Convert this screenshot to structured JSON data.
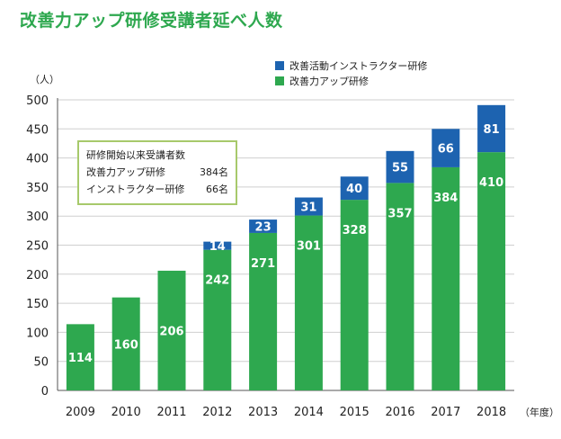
{
  "chart_data": {
    "type": "bar",
    "stacked": true,
    "title": "改善力アップ研修受講者延べ人数",
    "ylabel": "（人）",
    "xlabel": "（年度）",
    "ylim": [
      0,
      500
    ],
    "yticks": [
      "0",
      "50",
      "100",
      "150",
      "200",
      "250",
      "300",
      "350",
      "400",
      "450",
      "500"
    ],
    "categories": [
      "2009",
      "2010",
      "2011",
      "2012",
      "2013",
      "2014",
      "2015",
      "2016",
      "2017",
      "2018"
    ],
    "series": [
      {
        "name": "改善力アップ研修",
        "color": "#2ea84f",
        "values": [
          114,
          160,
          206,
          242,
          271,
          301,
          328,
          357,
          384,
          410
        ]
      },
      {
        "name": "改善活動インストラクター研修",
        "color": "#1d63b0",
        "values": [
          0,
          0,
          0,
          14,
          23,
          31,
          40,
          55,
          66,
          81
        ]
      }
    ],
    "legend_position": "top-right",
    "grid": true
  },
  "summary": {
    "heading": "研修開始以来受講者数",
    "rows": [
      {
        "label": "改善力アップ研修",
        "value": "384名"
      },
      {
        "label": "インストラクター研修",
        "value": "66名"
      }
    ]
  }
}
